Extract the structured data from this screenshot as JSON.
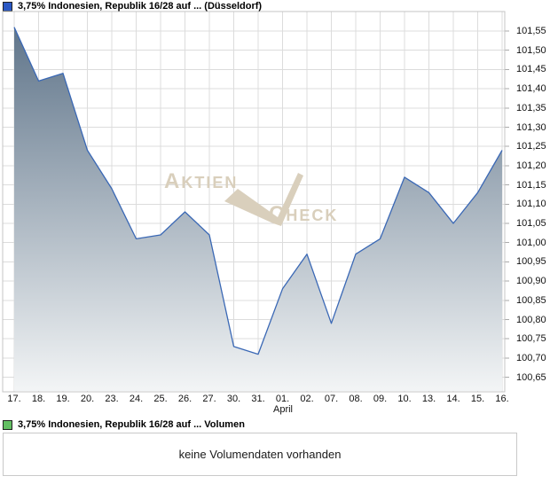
{
  "price_legend": {
    "label": "3,75% Indonesien, Republik 16/28 auf ... (Düsseldorf)",
    "marker_color": "#2a58c4"
  },
  "volume_legend": {
    "label": "3,75% Indonesien, Republik 16/28 auf ... Volumen",
    "marker_color": "#63bf63"
  },
  "volume_panel": {
    "message": "keine Volumendaten vorhanden"
  },
  "watermark": {
    "word1": "AKTIEN",
    "word2": "CHECK",
    "color": "#d9cfbc"
  },
  "colors": {
    "line": "#3a68b5",
    "area_top": "#5a7086",
    "area_bottom": "#f3f5f6",
    "grid": "#dcdcdc",
    "plot_border": "#c4c4c4",
    "tick": "#aaaaaa",
    "label_text": "#111111"
  },
  "chart_data": {
    "type": "area",
    "title": "3,75% Indonesien, Republik 16/28 auf ... (Düsseldorf)",
    "categories": [
      "17.",
      "18.",
      "19.",
      "20.",
      "23.",
      "24.",
      "25.",
      "26.",
      "27.",
      "30.",
      "31.",
      "01.",
      "02.",
      "07.",
      "08.",
      "09.",
      "10.",
      "13.",
      "14.",
      "15.",
      "16."
    ],
    "values": [
      101.56,
      101.42,
      101.44,
      101.24,
      101.14,
      101.01,
      101.02,
      101.08,
      101.02,
      100.73,
      100.71,
      100.88,
      100.97,
      100.79,
      100.97,
      101.01,
      101.17,
      101.13,
      101.05,
      101.13,
      101.24
    ],
    "x_axis_month_label": "April",
    "y_tick_labels": [
      "101,55",
      "101,50",
      "101,45",
      "101,40",
      "101,35",
      "101,30",
      "101,25",
      "101,20",
      "101,15",
      "101,10",
      "101,05",
      "101,00",
      "100,95",
      "100,90",
      "100,85",
      "100,80",
      "100,75",
      "100,70",
      "100,65"
    ],
    "ylim": [
      100.65,
      101.55
    ],
    "y_tick_step": 0.05,
    "grid": true,
    "legend_position": "top-left"
  }
}
